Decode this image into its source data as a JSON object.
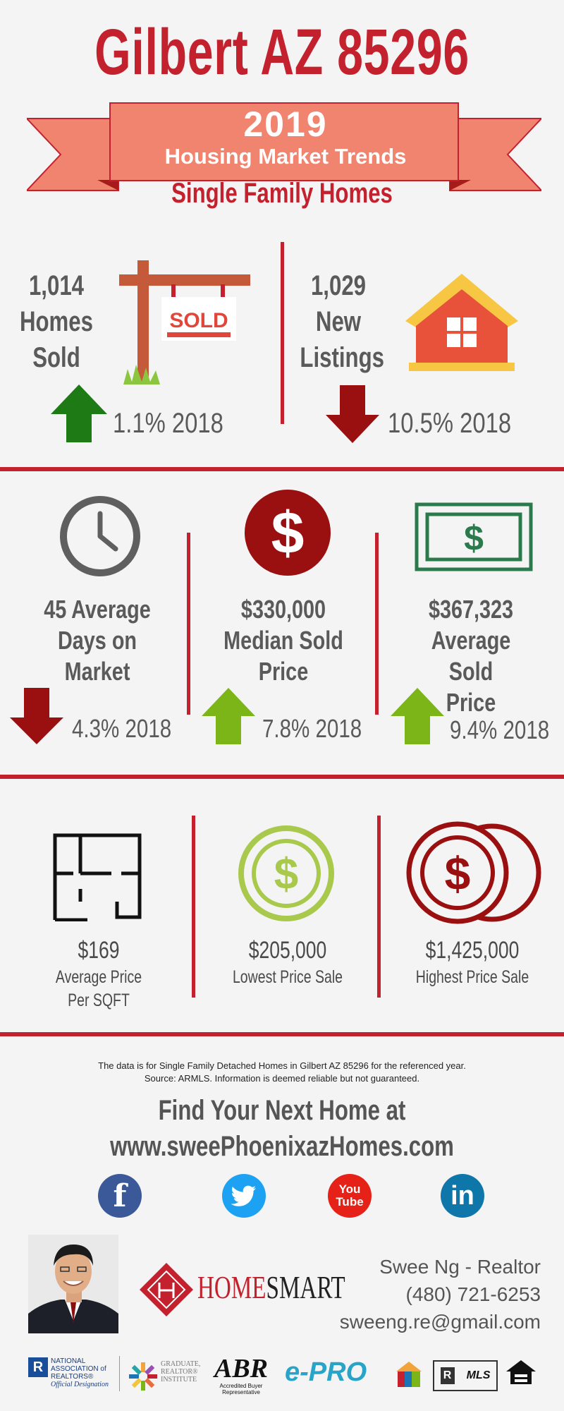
{
  "header": {
    "title": "Gilbert AZ 85296",
    "year": "2019",
    "subtitle": "Housing Market Trends",
    "category": "Single Family Homes"
  },
  "top_stats": [
    {
      "value": "1,014",
      "line2": "Homes",
      "line3": "Sold",
      "sign_text": "SOLD",
      "trend": "up",
      "pct": "1.1% 2018"
    },
    {
      "value": "1,029",
      "line2": "New",
      "line3": "Listings",
      "trend": "down",
      "pct": "10.5% 2018"
    }
  ],
  "mid_stats": [
    {
      "line1": "45 Average",
      "line2": "Days on",
      "line3": "Market",
      "trend": "down",
      "pct": "4.3% 2018"
    },
    {
      "line1": "$330,000",
      "line2": "Median Sold",
      "line3": "Price",
      "trend": "up",
      "pct": "7.8% 2018"
    },
    {
      "line1": "$367,323",
      "line2": "Average Sold",
      "line3": "Price",
      "trend": "up",
      "pct": "9.4% 2018"
    }
  ],
  "low_stats": [
    {
      "value": "$169",
      "line1": "Average Price",
      "line2": "Per SQFT"
    },
    {
      "value": "$205,000",
      "line1": "Lowest Price Sale",
      "line2": ""
    },
    {
      "value": "$1,425,000",
      "line1": "Highest Price Sale",
      "line2": ""
    }
  ],
  "footer": {
    "disclaimer1": "The data is for Single Family Detached Homes in Gilbert AZ 85296 for the referenced year.",
    "disclaimer2": "Source: ARMLS. Information is deemed reliable but not guaranteed.",
    "find1": "Find Your Next Home at",
    "find2": "www.sweePhoenixazHomes.com",
    "social": {
      "facebook": "f",
      "youtube_top": "You",
      "youtube_bottom": "Tube",
      "linkedin": "in"
    },
    "brand_home": "HOME",
    "brand_smart": "SMART",
    "agent_name": "Swee Ng - Realtor",
    "agent_phone": "(480) 721-6253",
    "agent_email": "sweeng.re@gmail.com",
    "badges": {
      "nar": "NATIONAL ASSOCIATION of REALTORS®",
      "nar_sub": "Official Designation",
      "gri": "GRADUATE, REALTOR® INSTITUTE",
      "abr": "ABR",
      "abr_sub": "Accredited Buyer Representative",
      "epro": "e-PRO",
      "mls": "MLS"
    }
  },
  "colors": {
    "red": "#c4212e",
    "dark_red": "#9a0f0f",
    "green_up": "#7cb518",
    "dark_green": "#1e7a14",
    "gray": "#5a5a5a",
    "ribbon": "#f0846f"
  }
}
